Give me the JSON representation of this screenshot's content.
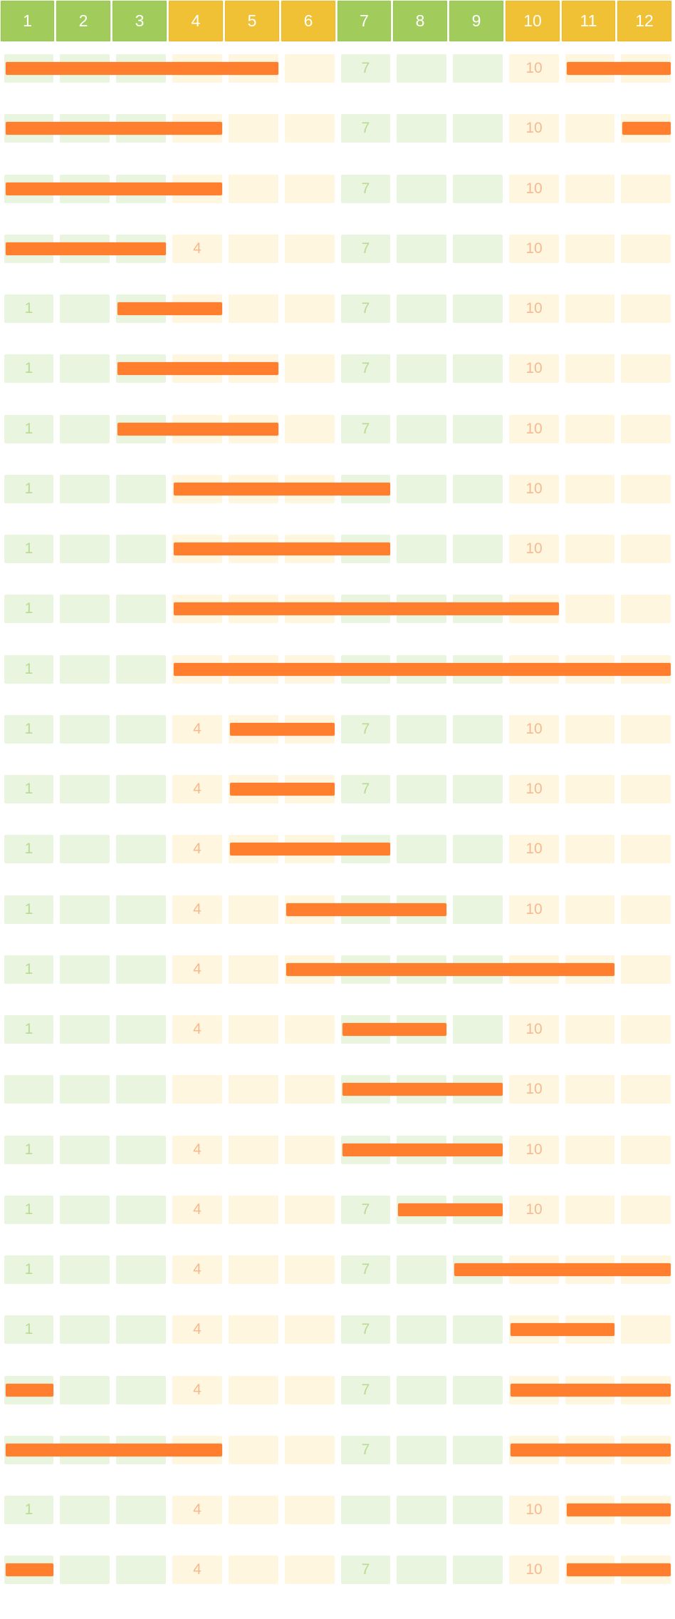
{
  "colors": {
    "header_green": "#a1cc5c",
    "header_yellow": "#f0c035",
    "cell_green": "#eaf5e0",
    "cell_yellow": "#fff6df",
    "label_green": "#b8da91",
    "label_yellow": "#f7b98e",
    "bar_orange": "#ff7f2e"
  },
  "months": [
    {
      "label": "1",
      "tone": "green"
    },
    {
      "label": "2",
      "tone": "green"
    },
    {
      "label": "3",
      "tone": "green"
    },
    {
      "label": "4",
      "tone": "yellow"
    },
    {
      "label": "5",
      "tone": "yellow"
    },
    {
      "label": "6",
      "tone": "yellow"
    },
    {
      "label": "7",
      "tone": "green"
    },
    {
      "label": "8",
      "tone": "green"
    },
    {
      "label": "9",
      "tone": "green"
    },
    {
      "label": "10",
      "tone": "yellow"
    },
    {
      "label": "11",
      "tone": "yellow"
    },
    {
      "label": "12",
      "tone": "yellow"
    }
  ],
  "rows": [
    {
      "labels": [
        7,
        10
      ],
      "bars": [
        [
          1,
          5
        ],
        [
          11,
          12
        ]
      ]
    },
    {
      "labels": [
        7,
        10
      ],
      "bars": [
        [
          1,
          4
        ],
        [
          12,
          12
        ]
      ]
    },
    {
      "labels": [
        7,
        10
      ],
      "bars": [
        [
          1,
          4
        ]
      ]
    },
    {
      "labels": [
        4,
        7,
        10
      ],
      "bars": [
        [
          1,
          3
        ]
      ]
    },
    {
      "labels": [
        1,
        7,
        10
      ],
      "bars": [
        [
          3,
          4
        ]
      ]
    },
    {
      "labels": [
        1,
        7,
        10
      ],
      "bars": [
        [
          3,
          5
        ]
      ]
    },
    {
      "labels": [
        1,
        7,
        10
      ],
      "bars": [
        [
          3,
          5
        ]
      ]
    },
    {
      "labels": [
        1,
        10
      ],
      "bars": [
        [
          4,
          7
        ]
      ]
    },
    {
      "labels": [
        1,
        10
      ],
      "bars": [
        [
          4,
          7
        ]
      ]
    },
    {
      "labels": [
        1
      ],
      "bars": [
        [
          4,
          10
        ]
      ]
    },
    {
      "labels": [
        1
      ],
      "bars": [
        [
          4,
          12
        ]
      ]
    },
    {
      "labels": [
        1,
        4,
        7,
        10
      ],
      "bars": [
        [
          5,
          6
        ]
      ]
    },
    {
      "labels": [
        1,
        4,
        7,
        10
      ],
      "bars": [
        [
          5,
          6
        ]
      ]
    },
    {
      "labels": [
        1,
        4,
        10
      ],
      "bars": [
        [
          5,
          7
        ]
      ]
    },
    {
      "labels": [
        1,
        4,
        10
      ],
      "bars": [
        [
          6,
          8
        ]
      ]
    },
    {
      "labels": [
        1,
        4
      ],
      "bars": [
        [
          6,
          11
        ]
      ]
    },
    {
      "labels": [
        1,
        4,
        10
      ],
      "bars": [
        [
          7,
          8
        ]
      ]
    },
    {
      "labels": [
        10
      ],
      "bars": [
        [
          7,
          9
        ]
      ]
    },
    {
      "labels": [
        1,
        4,
        10
      ],
      "bars": [
        [
          7,
          9
        ]
      ]
    },
    {
      "labels": [
        1,
        4,
        7,
        10
      ],
      "bars": [
        [
          8,
          9
        ]
      ]
    },
    {
      "labels": [
        1,
        4,
        7
      ],
      "bars": [
        [
          9,
          12
        ]
      ]
    },
    {
      "labels": [
        1,
        4,
        7
      ],
      "bars": [
        [
          10,
          11
        ]
      ]
    },
    {
      "labels": [
        4,
        7
      ],
      "bars": [
        [
          1,
          1
        ],
        [
          10,
          12
        ]
      ]
    },
    {
      "labels": [
        7
      ],
      "bars": [
        [
          1,
          4
        ],
        [
          10,
          12
        ]
      ]
    },
    {
      "labels": [
        1,
        4,
        10
      ],
      "bars": [
        [
          11,
          12
        ]
      ]
    },
    {
      "labels": [
        4,
        7,
        10
      ],
      "bars": [
        [
          1,
          1
        ],
        [
          11,
          12
        ]
      ]
    }
  ]
}
